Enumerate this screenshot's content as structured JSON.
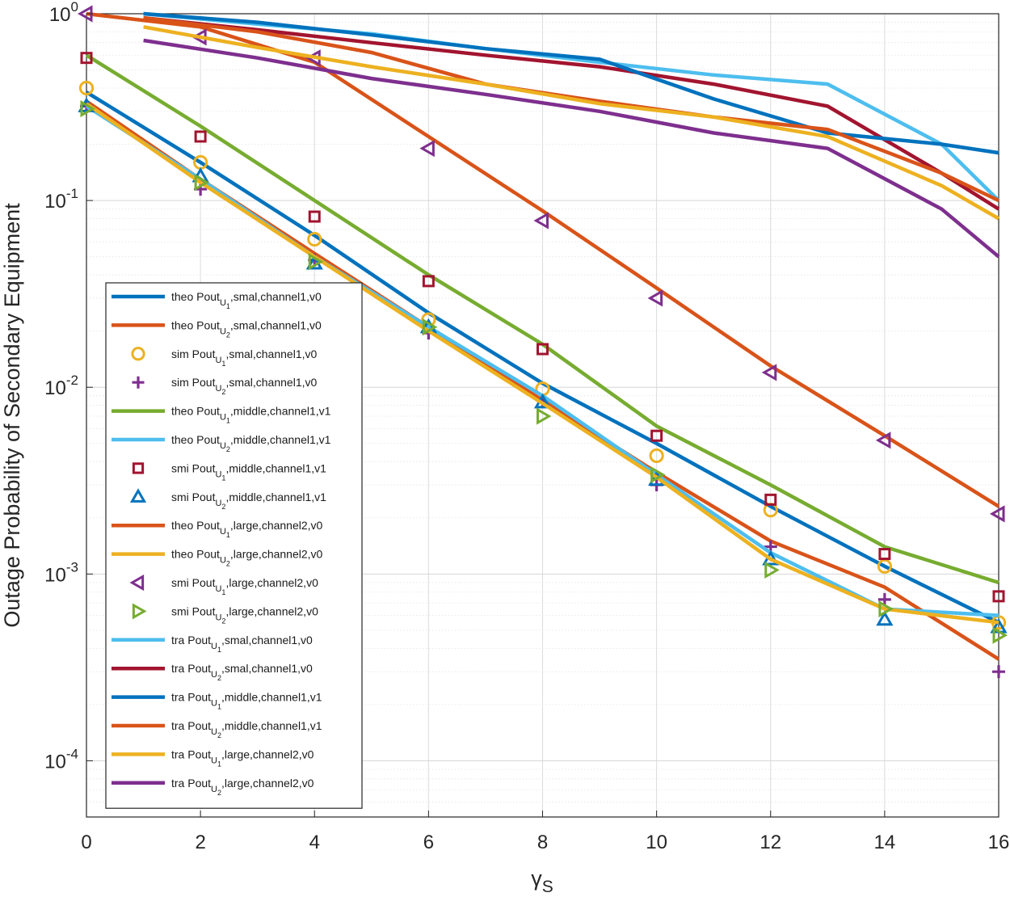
{
  "chart_data": {
    "type": "line",
    "title": "",
    "xlabel": "γS",
    "ylabel": "Outage Probability of Secondary Equipment",
    "xlim": [
      0,
      16
    ],
    "ylim": [
      5e-05,
      1
    ],
    "yscale": "log",
    "xticks": [
      "0",
      "2",
      "4",
      "6",
      "8",
      "10",
      "12",
      "14",
      "16"
    ],
    "yticks": [
      {
        "base": "10",
        "exp": "0"
      },
      {
        "base": "10",
        "exp": "-1"
      },
      {
        "base": "10",
        "exp": "-2"
      },
      {
        "base": "10",
        "exp": "-3"
      },
      {
        "base": "10",
        "exp": "-4"
      }
    ],
    "grid": true,
    "legend_position": "left-middle",
    "series": [
      {
        "name": "theo PoutU1,smal,channel1,v0",
        "legend": {
          "pre": "theo Pout",
          "sub": "U",
          "subsub": "1",
          "post": ",smal,channel1,v0"
        },
        "style": "line",
        "color": "#0072BD",
        "x": [
          0,
          2,
          4,
          6,
          8,
          10,
          12,
          14,
          16
        ],
        "y": [
          0.38,
          0.16,
          0.065,
          0.025,
          0.0105,
          0.005,
          0.0023,
          0.0011,
          0.00055
        ]
      },
      {
        "name": "theo PoutU2,smal,channel1,v0",
        "legend": {
          "pre": "theo Pout",
          "sub": "U",
          "subsub": "2",
          "post": ",smal,channel1,v0"
        },
        "style": "line",
        "color": "#D95319",
        "x": [
          0,
          2,
          4,
          6,
          8,
          10,
          12,
          14,
          16
        ],
        "y": [
          0.34,
          0.13,
          0.052,
          0.021,
          0.0085,
          0.0035,
          0.0015,
          0.00085,
          0.00035
        ]
      },
      {
        "name": "sim PoutU1,smal,channel1,v0",
        "legend": {
          "pre": "sim Pout",
          "sub": "U",
          "subsub": "1",
          "post": ",smal,channel1,v0"
        },
        "style": "marker",
        "marker": "circle",
        "color": "#EDB120",
        "x": [
          0,
          2,
          4,
          6,
          8,
          10,
          12,
          14,
          16
        ],
        "y": [
          0.4,
          0.16,
          0.062,
          0.023,
          0.0098,
          0.0043,
          0.0022,
          0.0011,
          0.00055
        ]
      },
      {
        "name": "sim PoutU2,smal,channel1,v0",
        "legend": {
          "pre": "sim Pout",
          "sub": "U",
          "subsub": "2",
          "post": ",smal,channel1,v0"
        },
        "style": "marker",
        "marker": "plus",
        "color": "#7E2F8E",
        "x": [
          0,
          2,
          4,
          6,
          8,
          10,
          12,
          14,
          16
        ],
        "y": [
          0.32,
          0.115,
          0.048,
          0.0195,
          0.0085,
          0.003,
          0.0014,
          0.00073,
          0.0003
        ]
      },
      {
        "name": "theo PoutU1,middle,channel1,v1",
        "legend": {
          "pre": "theo Pout",
          "sub": "U",
          "subsub": "1",
          "post": ",middle,channel1,v1"
        },
        "style": "line",
        "color": "#77AC30",
        "x": [
          0,
          2,
          4,
          6,
          8,
          10,
          12,
          14,
          16
        ],
        "y": [
          0.6,
          0.25,
          0.1,
          0.04,
          0.017,
          0.0062,
          0.003,
          0.0014,
          0.0009
        ]
      },
      {
        "name": "theo PoutU2,middle,channel1,v1",
        "legend": {
          "pre": "theo Pout",
          "sub": "U",
          "subsub": "2",
          "post": ",middle,channel1,v1"
        },
        "style": "line",
        "color": "#4DBEEE",
        "x": [
          0,
          2,
          4,
          6,
          8,
          10,
          12,
          14,
          16
        ],
        "y": [
          0.32,
          0.13,
          0.05,
          0.021,
          0.009,
          0.0034,
          0.0013,
          0.00065,
          0.0006
        ]
      },
      {
        "name": "smi PoutU1,middle,channel1,v1",
        "legend": {
          "pre": "smi Pout",
          "sub": "U",
          "subsub": "1",
          "post": ",middle,channel1,v1"
        },
        "style": "marker",
        "marker": "square",
        "color": "#A2142F",
        "x": [
          0,
          2,
          4,
          6,
          8,
          10,
          12,
          14,
          16
        ],
        "y": [
          0.58,
          0.22,
          0.082,
          0.037,
          0.016,
          0.0055,
          0.0025,
          0.00128,
          0.00076
        ]
      },
      {
        "name": "smi PoutU2,middle,channel1,v1",
        "legend": {
          "pre": "smi Pout",
          "sub": "U",
          "subsub": "2",
          "post": ",middle,channel1,v1"
        },
        "style": "marker",
        "marker": "triangle-up",
        "color": "#0072BD",
        "x": [
          0,
          2,
          4,
          6,
          8,
          10,
          12,
          14,
          16
        ],
        "y": [
          0.32,
          0.135,
          0.046,
          0.021,
          0.0083,
          0.0032,
          0.0012,
          0.00057,
          0.00052
        ]
      },
      {
        "name": "theo PoutU1,large,channel2,v0",
        "legend": {
          "pre": "theo Pout",
          "sub": "U",
          "subsub": "1",
          "post": ",large,channel2,v0"
        },
        "style": "line",
        "color": "#D95319",
        "x": [
          0,
          2,
          4,
          6,
          8,
          10,
          12,
          14,
          16
        ],
        "y": [
          1.0,
          0.85,
          0.55,
          0.22,
          0.088,
          0.034,
          0.013,
          0.0055,
          0.0023
        ]
      },
      {
        "name": "theo PoutU2,large,channel2,v0",
        "legend": {
          "pre": "theo Pout",
          "sub": "U",
          "subsub": "2",
          "post": ",large,channel2,v0"
        },
        "style": "line",
        "color": "#EDB120",
        "x": [
          0,
          2,
          4,
          6,
          8,
          10,
          12,
          14,
          16
        ],
        "y": [
          0.33,
          0.125,
          0.05,
          0.02,
          0.0082,
          0.0033,
          0.0012,
          0.00065,
          0.00055
        ]
      },
      {
        "name": "smi PoutU1,large,channel2,v0",
        "legend": {
          "pre": "smi Pout",
          "sub": "U",
          "subsub": "1",
          "post": ",large,channel2,v0"
        },
        "style": "marker",
        "marker": "triangle-left",
        "color": "#7E2F8E",
        "x": [
          0,
          2,
          4,
          6,
          8,
          10,
          12,
          14,
          16
        ],
        "y": [
          1.0,
          0.75,
          0.58,
          0.19,
          0.078,
          0.03,
          0.012,
          0.0052,
          0.0021
        ]
      },
      {
        "name": "smi PoutU2,large,channel2,v0",
        "legend": {
          "pre": "smi Pout",
          "sub": "U",
          "subsub": "2",
          "post": ",large,channel2,v0"
        },
        "style": "marker",
        "marker": "triangle-right",
        "color": "#77AC30",
        "x": [
          0,
          2,
          4,
          6,
          8,
          10,
          12,
          14,
          16
        ],
        "y": [
          0.31,
          0.125,
          0.047,
          0.021,
          0.007,
          0.0034,
          0.00105,
          0.00065,
          0.00047
        ]
      },
      {
        "name": "tra PoutU1,smal,channel1,v0",
        "legend": {
          "pre": "tra Pout",
          "sub": "U",
          "subsub": "1",
          "post": ",smal,channel1,v0"
        },
        "style": "line",
        "color": "#4DBEEE",
        "x": [
          1,
          3,
          5,
          7,
          9,
          11,
          13,
          15,
          16
        ],
        "y": [
          1.0,
          0.88,
          0.78,
          0.65,
          0.55,
          0.47,
          0.42,
          0.2,
          0.1
        ]
      },
      {
        "name": "tra PoutU2,smal,channel1,v0",
        "legend": {
          "pre": "tra Pout",
          "sub": "U",
          "subsub": "2",
          "post": ",smal,channel1,v0"
        },
        "style": "line",
        "color": "#A2142F",
        "x": [
          1,
          3,
          5,
          7,
          9,
          11,
          13,
          15,
          16
        ],
        "y": [
          0.95,
          0.82,
          0.7,
          0.6,
          0.52,
          0.42,
          0.32,
          0.14,
          0.09
        ]
      },
      {
        "name": "tra PoutU1,middle,channel1,v1",
        "legend": {
          "pre": "tra Pout",
          "sub": "U",
          "subsub": "1",
          "post": ",middle,channel1,v1"
        },
        "style": "line",
        "color": "#0072BD",
        "x": [
          1,
          3,
          5,
          7,
          9,
          11,
          13,
          15,
          16
        ],
        "y": [
          1.0,
          0.9,
          0.77,
          0.65,
          0.57,
          0.35,
          0.23,
          0.2,
          0.18
        ]
      },
      {
        "name": "tra PoutU2,middle,channel1,v1",
        "legend": {
          "pre": "tra Pout",
          "sub": "U",
          "subsub": "2",
          "post": ",middle,channel1,v1"
        },
        "style": "line",
        "color": "#D95319",
        "x": [
          1,
          3,
          5,
          7,
          9,
          11,
          13,
          15,
          16
        ],
        "y": [
          0.95,
          0.8,
          0.62,
          0.42,
          0.34,
          0.28,
          0.24,
          0.14,
          0.1
        ]
      },
      {
        "name": "tra PoutU1,large,channel2,v0",
        "legend": {
          "pre": "tra Pout",
          "sub": "U",
          "subsub": "1",
          "post": ",large,channel2,v0"
        },
        "style": "line",
        "color": "#EDB120",
        "x": [
          1,
          3,
          5,
          7,
          9,
          11,
          13,
          15,
          16
        ],
        "y": [
          0.85,
          0.66,
          0.52,
          0.42,
          0.33,
          0.28,
          0.22,
          0.12,
          0.08
        ]
      },
      {
        "name": "tra PoutU2,large,channel2,v0",
        "legend": {
          "pre": "tra Pout",
          "sub": "U",
          "subsub": "2",
          "post": ",large,channel2,v0"
        },
        "style": "line",
        "color": "#7E2F8E",
        "x": [
          1,
          3,
          5,
          7,
          9,
          11,
          13,
          15,
          16
        ],
        "y": [
          0.72,
          0.58,
          0.45,
          0.37,
          0.3,
          0.23,
          0.19,
          0.09,
          0.05
        ]
      }
    ]
  }
}
